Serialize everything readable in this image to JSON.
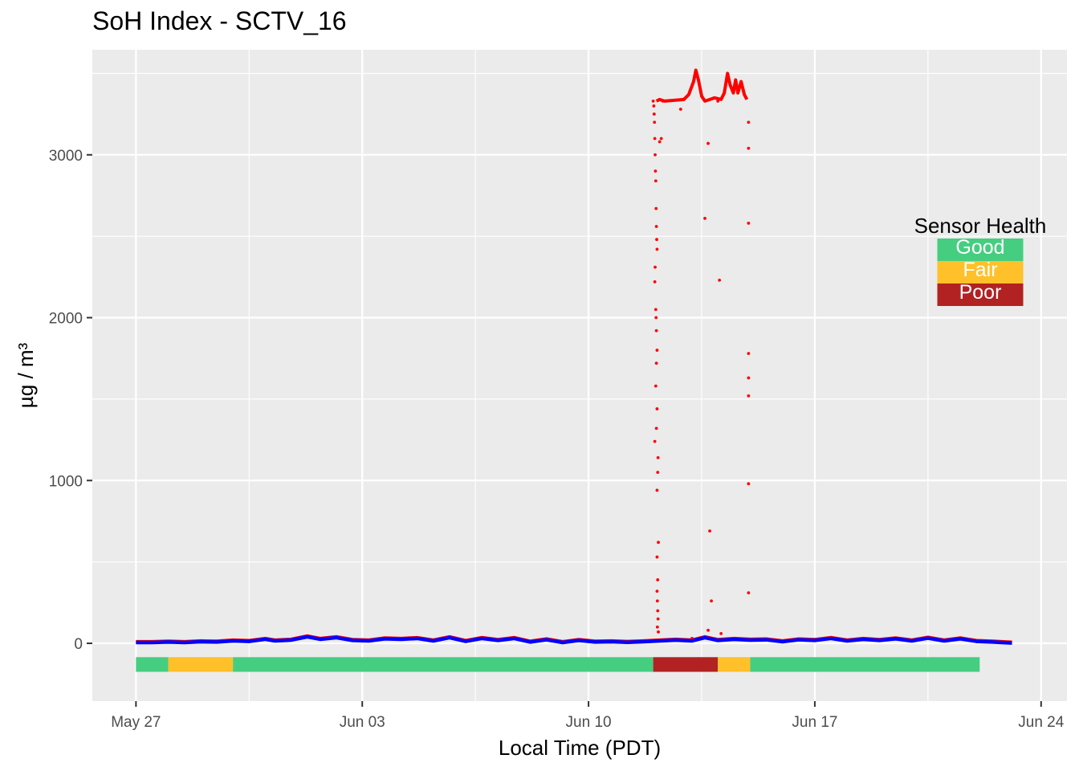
{
  "colors": {
    "panel_bg": "#EBEBEB",
    "grid": "#FFFFFF",
    "raw_points": "#FF0000",
    "smoothed_line": "#0000FF",
    "good": "#45CE80",
    "fair": "#FFC02A",
    "poor": "#B22222"
  },
  "chart_data": {
    "type": "scatter",
    "title": "SoH Index - SCTV_16",
    "xlabel": "Local Time (PDT)",
    "ylabel": "µg / m³",
    "x_ticks": [
      "May 27",
      "Jun 03",
      "Jun 10",
      "Jun 17",
      "Jun 24"
    ],
    "x_tick_days": [
      0,
      7,
      14,
      21,
      28
    ],
    "y_ticks": [
      0,
      1000,
      2000,
      3000
    ],
    "xlim_days": [
      -1.35,
      28.8
    ],
    "ylim": [
      -355,
      3645
    ],
    "grid": true,
    "series": [],
    "raw_spike_points": [
      {
        "day": 16.0,
        "y": 3330
      },
      {
        "day": 16.02,
        "y": 3300
      },
      {
        "day": 16.03,
        "y": 3250
      },
      {
        "day": 16.04,
        "y": 3200
      },
      {
        "day": 16.05,
        "y": 3100
      },
      {
        "day": 16.06,
        "y": 3000
      },
      {
        "day": 16.07,
        "y": 2900
      },
      {
        "day": 16.08,
        "y": 2840
      },
      {
        "day": 16.09,
        "y": 2670
      },
      {
        "day": 16.1,
        "y": 2560
      },
      {
        "day": 16.11,
        "y": 2480
      },
      {
        "day": 16.12,
        "y": 2420
      },
      {
        "day": 16.06,
        "y": 2310
      },
      {
        "day": 16.05,
        "y": 2220
      },
      {
        "day": 16.08,
        "y": 2050
      },
      {
        "day": 16.09,
        "y": 2000
      },
      {
        "day": 16.1,
        "y": 1920
      },
      {
        "day": 16.12,
        "y": 1800
      },
      {
        "day": 16.1,
        "y": 1720
      },
      {
        "day": 16.08,
        "y": 1580
      },
      {
        "day": 16.12,
        "y": 1440
      },
      {
        "day": 16.1,
        "y": 1320
      },
      {
        "day": 16.05,
        "y": 1240
      },
      {
        "day": 16.15,
        "y": 1140
      },
      {
        "day": 16.14,
        "y": 1050
      },
      {
        "day": 16.12,
        "y": 940
      },
      {
        "day": 16.16,
        "y": 620
      },
      {
        "day": 16.12,
        "y": 530
      },
      {
        "day": 16.14,
        "y": 390
      },
      {
        "day": 16.12,
        "y": 320
      },
      {
        "day": 16.13,
        "y": 260
      },
      {
        "day": 16.14,
        "y": 200
      },
      {
        "day": 16.15,
        "y": 150
      },
      {
        "day": 16.13,
        "y": 100
      },
      {
        "day": 16.16,
        "y": 70
      },
      {
        "day": 16.2,
        "y": 3080
      },
      {
        "day": 16.25,
        "y": 3100
      },
      {
        "day": 16.3,
        "y": 3330
      },
      {
        "day": 16.85,
        "y": 3280
      },
      {
        "day": 16.95,
        "y": 3340
      },
      {
        "day": 17.6,
        "y": 2610
      },
      {
        "day": 17.7,
        "y": 3070
      },
      {
        "day": 18.0,
        "y": 3330
      },
      {
        "day": 18.05,
        "y": 2230
      },
      {
        "day": 17.75,
        "y": 690
      },
      {
        "day": 17.8,
        "y": 260
      },
      {
        "day": 17.7,
        "y": 80
      },
      {
        "day": 18.1,
        "y": 60
      },
      {
        "day": 18.95,
        "y": 3200
      },
      {
        "day": 18.95,
        "y": 3040
      },
      {
        "day": 18.95,
        "y": 2580
      },
      {
        "day": 18.95,
        "y": 1780
      },
      {
        "day": 18.95,
        "y": 1630
      },
      {
        "day": 18.95,
        "y": 1520
      },
      {
        "day": 18.95,
        "y": 980
      },
      {
        "day": 18.95,
        "y": 310
      },
      {
        "day": 16.8,
        "y": 20
      },
      {
        "day": 17.2,
        "y": 30
      }
    ],
    "raw_plateau_line": [
      {
        "day": 16.1,
        "y": 3330
      },
      {
        "day": 16.2,
        "y": 3340
      },
      {
        "day": 16.35,
        "y": 3330
      },
      {
        "day": 16.95,
        "y": 3340
      },
      {
        "day": 17.1,
        "y": 3370
      },
      {
        "day": 17.25,
        "y": 3450
      },
      {
        "day": 17.32,
        "y": 3520
      },
      {
        "day": 17.4,
        "y": 3460
      },
      {
        "day": 17.5,
        "y": 3360
      },
      {
        "day": 17.6,
        "y": 3330
      },
      {
        "day": 17.75,
        "y": 3340
      },
      {
        "day": 17.9,
        "y": 3350
      },
      {
        "day": 18.1,
        "y": 3340
      },
      {
        "day": 18.2,
        "y": 3380
      },
      {
        "day": 18.3,
        "y": 3500
      },
      {
        "day": 18.38,
        "y": 3430
      },
      {
        "day": 18.48,
        "y": 3380
      },
      {
        "day": 18.55,
        "y": 3460
      },
      {
        "day": 18.62,
        "y": 3380
      },
      {
        "day": 18.72,
        "y": 3450
      },
      {
        "day": 18.82,
        "y": 3370
      },
      {
        "day": 18.9,
        "y": 3340
      }
    ],
    "smoothed": [
      {
        "day": 0,
        "y": 5
      },
      {
        "day": 0.5,
        "y": 5
      },
      {
        "day": 1,
        "y": 8
      },
      {
        "day": 1.5,
        "y": 5
      },
      {
        "day": 2,
        "y": 10
      },
      {
        "day": 2.5,
        "y": 8
      },
      {
        "day": 3,
        "y": 15
      },
      {
        "day": 3.5,
        "y": 12
      },
      {
        "day": 4,
        "y": 25
      },
      {
        "day": 4.3,
        "y": 15
      },
      {
        "day": 4.8,
        "y": 20
      },
      {
        "day": 5.3,
        "y": 40
      },
      {
        "day": 5.7,
        "y": 25
      },
      {
        "day": 6.2,
        "y": 35
      },
      {
        "day": 6.7,
        "y": 18
      },
      {
        "day": 7.2,
        "y": 15
      },
      {
        "day": 7.7,
        "y": 28
      },
      {
        "day": 8.2,
        "y": 25
      },
      {
        "day": 8.7,
        "y": 30
      },
      {
        "day": 9.2,
        "y": 15
      },
      {
        "day": 9.7,
        "y": 35
      },
      {
        "day": 10.2,
        "y": 12
      },
      {
        "day": 10.7,
        "y": 30
      },
      {
        "day": 11.2,
        "y": 18
      },
      {
        "day": 11.7,
        "y": 30
      },
      {
        "day": 12.2,
        "y": 8
      },
      {
        "day": 12.7,
        "y": 22
      },
      {
        "day": 13.2,
        "y": 5
      },
      {
        "day": 13.7,
        "y": 18
      },
      {
        "day": 14.2,
        "y": 8
      },
      {
        "day": 14.7,
        "y": 10
      },
      {
        "day": 15.2,
        "y": 6
      },
      {
        "day": 15.7,
        "y": 10
      },
      {
        "day": 16.2,
        "y": 15
      },
      {
        "day": 16.7,
        "y": 20
      },
      {
        "day": 17.2,
        "y": 15
      },
      {
        "day": 17.6,
        "y": 35
      },
      {
        "day": 18.0,
        "y": 18
      },
      {
        "day": 18.5,
        "y": 25
      },
      {
        "day": 19.0,
        "y": 20
      },
      {
        "day": 19.5,
        "y": 22
      },
      {
        "day": 20.0,
        "y": 10
      },
      {
        "day": 20.5,
        "y": 22
      },
      {
        "day": 21.0,
        "y": 18
      },
      {
        "day": 21.5,
        "y": 30
      },
      {
        "day": 22.0,
        "y": 15
      },
      {
        "day": 22.5,
        "y": 25
      },
      {
        "day": 23.0,
        "y": 18
      },
      {
        "day": 23.5,
        "y": 28
      },
      {
        "day": 24.0,
        "y": 15
      },
      {
        "day": 24.5,
        "y": 32
      },
      {
        "day": 25.0,
        "y": 15
      },
      {
        "day": 25.5,
        "y": 28
      },
      {
        "day": 26.0,
        "y": 12
      },
      {
        "day": 26.5,
        "y": 8
      },
      {
        "day": 26.9,
        "y": 4
      },
      {
        "day": 27.1,
        "y": 2
      }
    ],
    "soh_bar": {
      "y_center": -130,
      "y_half_height": 45,
      "segments": [
        {
          "start_day": 0,
          "end_day": 1,
          "status": "good"
        },
        {
          "start_day": 1,
          "end_day": 3,
          "status": "fair"
        },
        {
          "start_day": 3,
          "end_day": 16,
          "status": "good"
        },
        {
          "start_day": 16,
          "end_day": 18,
          "status": "poor"
        },
        {
          "start_day": 18,
          "end_day": 19,
          "status": "fair"
        },
        {
          "start_day": 19,
          "end_day": 26.1,
          "status": "good"
        }
      ]
    },
    "legend": {
      "title": "Sensor Health",
      "placement": "right",
      "items": [
        {
          "label": "Good",
          "status": "good"
        },
        {
          "label": "Fair",
          "status": "fair"
        },
        {
          "label": "Poor",
          "status": "poor"
        }
      ]
    }
  }
}
